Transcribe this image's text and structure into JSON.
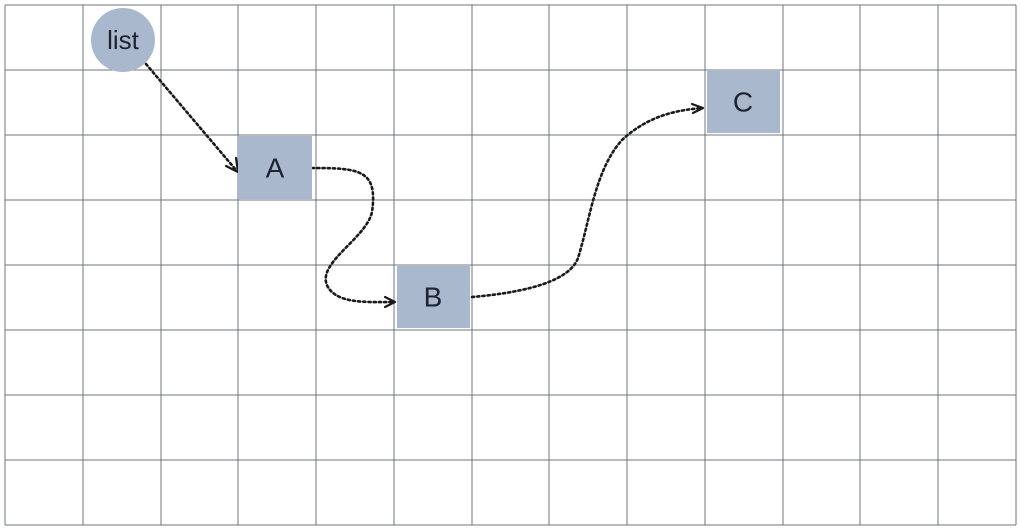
{
  "head": {
    "label": "list"
  },
  "nodes": [
    {
      "id": "a",
      "label": "A"
    },
    {
      "id": "b",
      "label": "B"
    },
    {
      "id": "c",
      "label": "C"
    }
  ],
  "colors": {
    "node_fill": "#a9b8cd",
    "grid": "#6f757c",
    "pointer": "#1a1a1a",
    "text": "#1d2330"
  }
}
